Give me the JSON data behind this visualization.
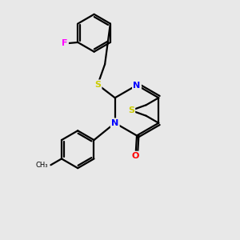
{
  "background_color": "#e8e8e8",
  "bond_color": "#000000",
  "N_color": "#0000ff",
  "S_color": "#cccc00",
  "O_color": "#ff0000",
  "F_color": "#ff00ff",
  "figsize": [
    3.0,
    3.0
  ],
  "dpi": 100,
  "xlim": [
    0,
    10
  ],
  "ylim": [
    0,
    10
  ]
}
